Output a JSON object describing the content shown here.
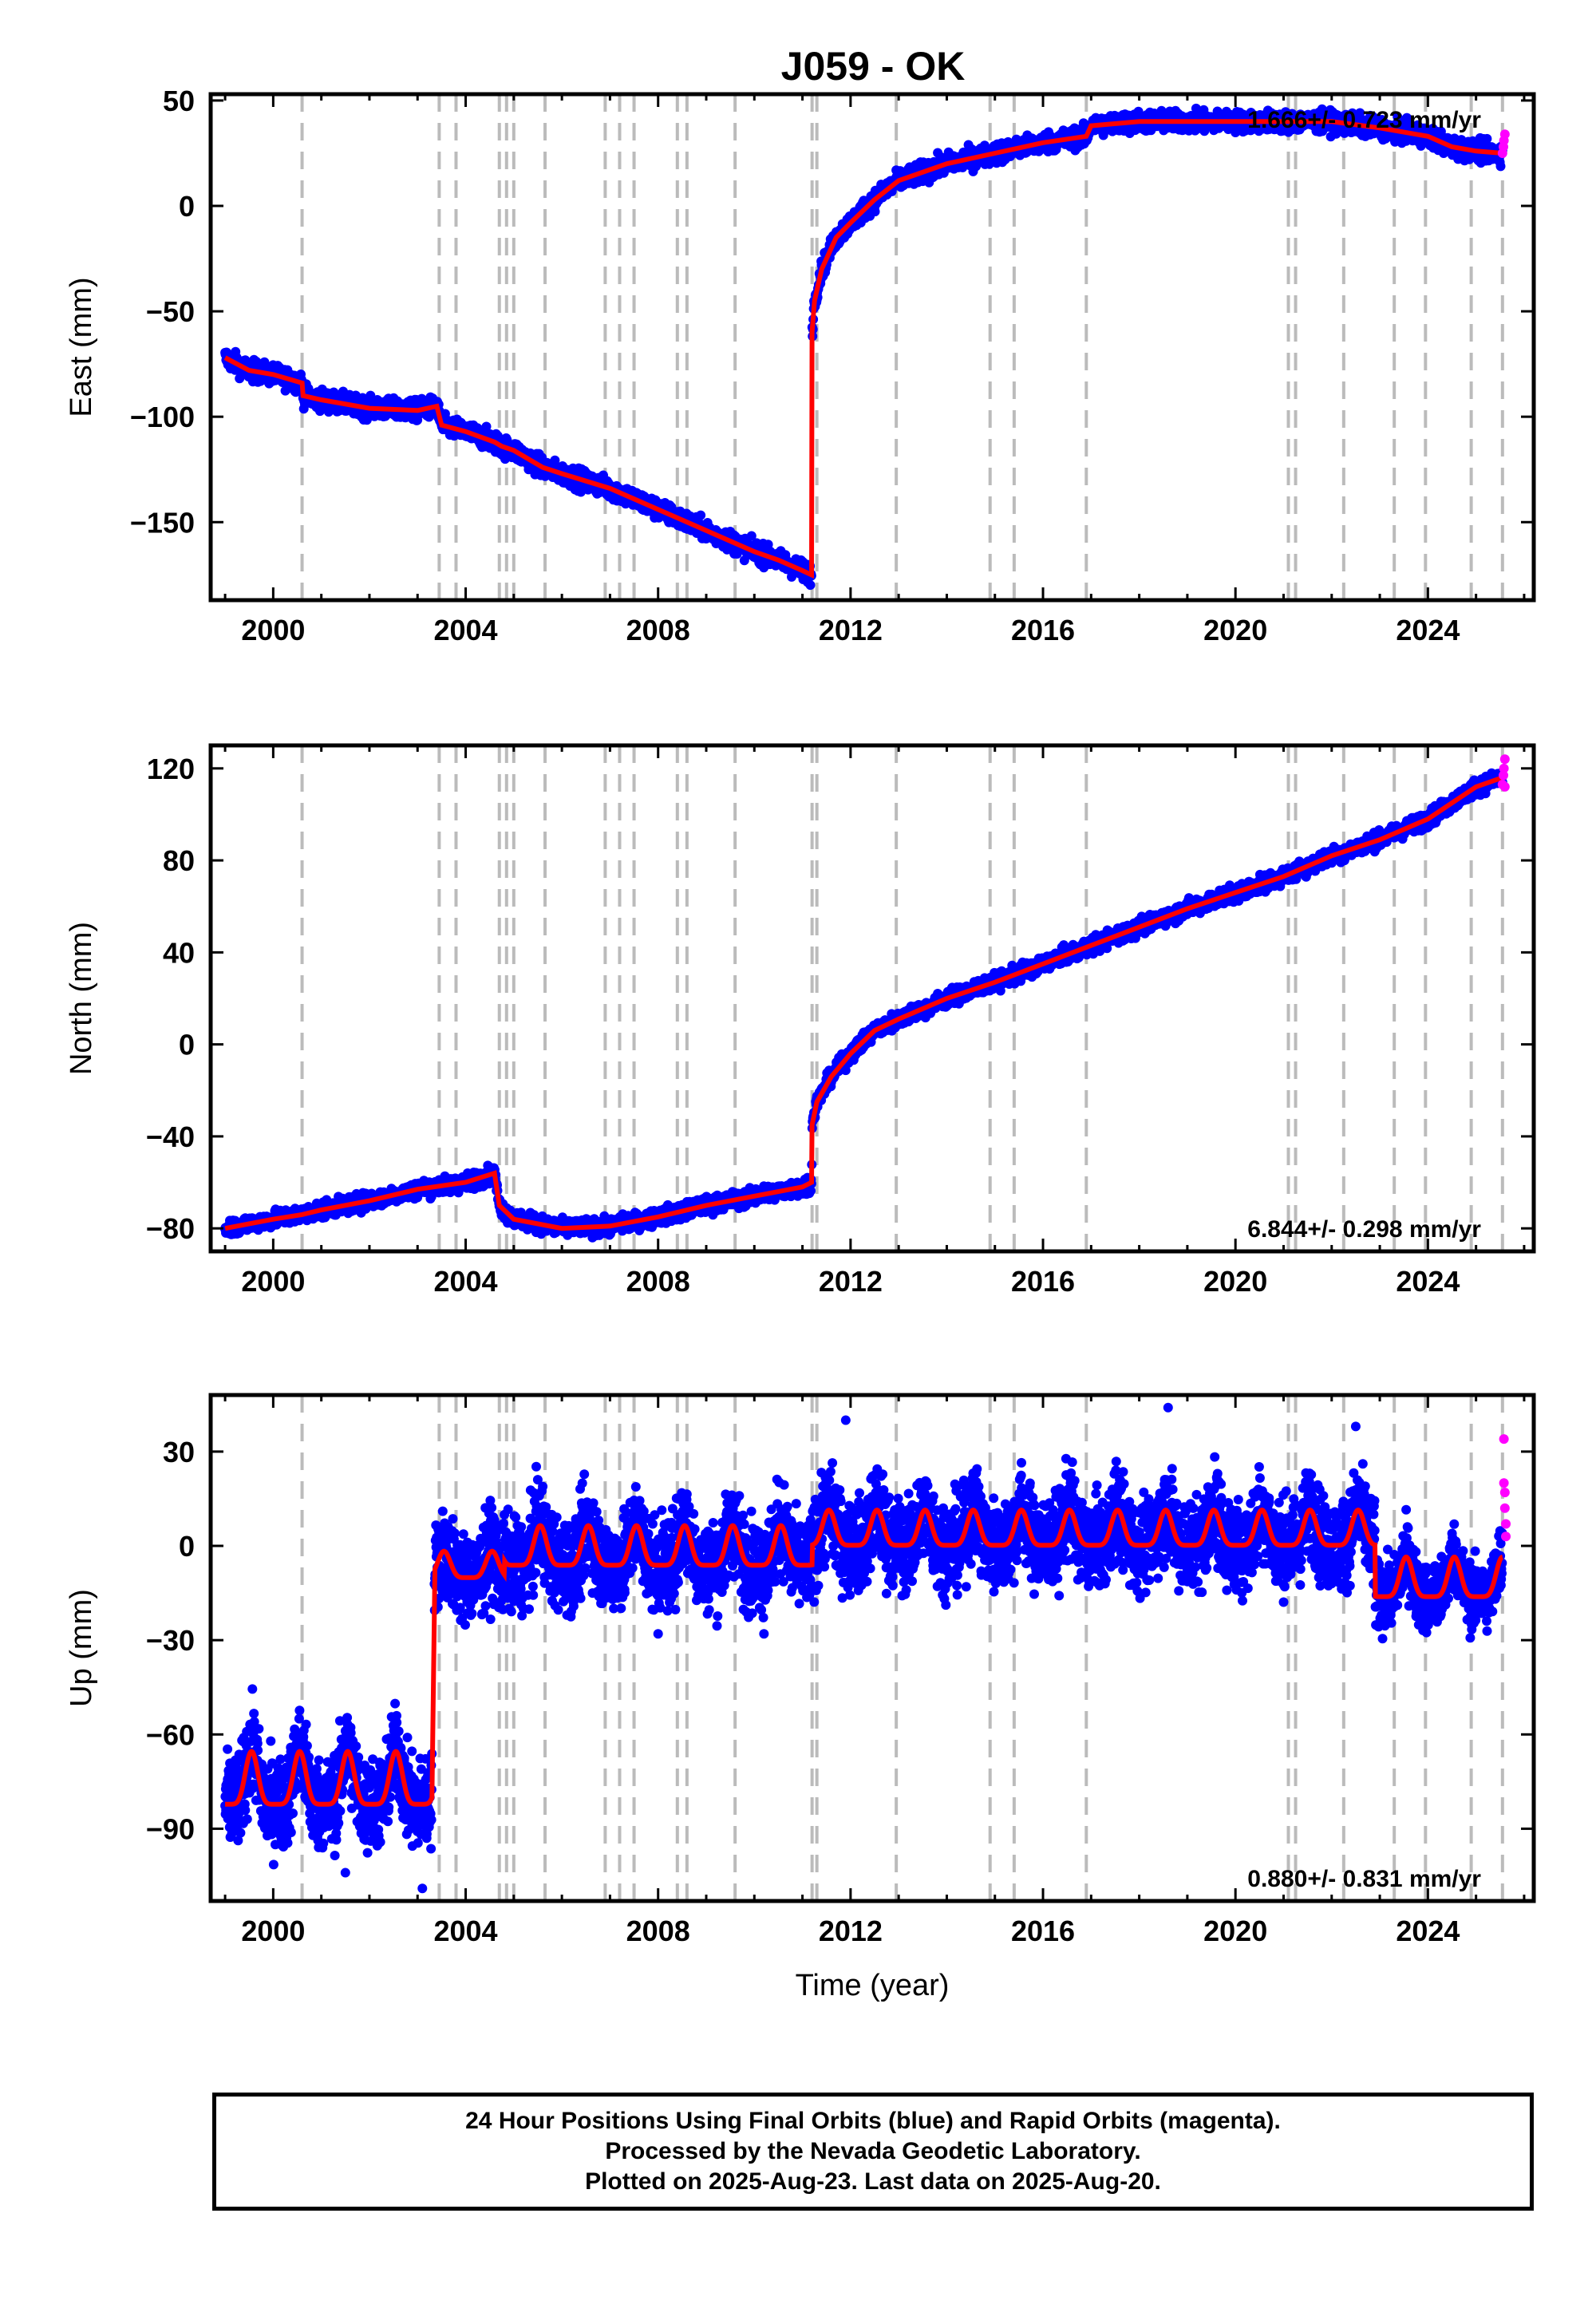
{
  "title": "J059 - OK",
  "colors": {
    "final_orbits": "#0000ff",
    "rapid_orbits": "#ff00ff",
    "model": "#ff0000",
    "equipment_lines": "#bbbbbb"
  },
  "footer": {
    "line1": "24 Hour Positions Using Final Orbits (blue) and Rapid Orbits (magenta).",
    "line2": "Processed by the Nevada Geodetic Laboratory.",
    "line3": "Plotted on 2025-Aug-23. Last data on 2025-Aug-20."
  },
  "chart_data": [
    {
      "type": "scatter",
      "component": "east",
      "ylabel": "East (mm)",
      "xlabel": "",
      "xlim": [
        1998.7,
        2026.2
      ],
      "ylim": [
        -187,
        53
      ],
      "xticks": [
        2000,
        2004,
        2008,
        2012,
        2016,
        2020,
        2024
      ],
      "yticks": [
        50,
        0,
        -50,
        -100,
        -150
      ],
      "ytick_labels": [
        "50",
        "0",
        "−50",
        "−100",
        "−150"
      ],
      "rate_label": "1.666+/- 0.723 mm/yr",
      "rate_position": "top-right",
      "model_points": [
        [
          1999.0,
          -72
        ],
        [
          1999.5,
          -78
        ],
        [
          2000.0,
          -80
        ],
        [
          2000.6,
          -84
        ],
        [
          2000.62,
          -90
        ],
        [
          2001.0,
          -92
        ],
        [
          2002.0,
          -96
        ],
        [
          2003.0,
          -97
        ],
        [
          2003.4,
          -95
        ],
        [
          2003.5,
          -104
        ],
        [
          2004.0,
          -107
        ],
        [
          2004.6,
          -112
        ],
        [
          2004.75,
          -114
        ],
        [
          2005.0,
          -116
        ],
        [
          2005.6,
          -124
        ],
        [
          2006.0,
          -127
        ],
        [
          2007.0,
          -134
        ],
        [
          2008.0,
          -144
        ],
        [
          2009.0,
          -154
        ],
        [
          2010.0,
          -164
        ],
        [
          2010.5,
          -168
        ],
        [
          2011.0,
          -173
        ],
        [
          2011.19,
          -175
        ],
        [
          2011.2,
          -60
        ],
        [
          2011.25,
          -45
        ],
        [
          2011.4,
          -30
        ],
        [
          2011.7,
          -15
        ],
        [
          2012.0,
          -8
        ],
        [
          2012.5,
          3
        ],
        [
          2013.0,
          12
        ],
        [
          2014.0,
          20
        ],
        [
          2015.0,
          25
        ],
        [
          2016.0,
          30
        ],
        [
          2016.9,
          33
        ],
        [
          2017.0,
          38
        ],
        [
          2018.0,
          40
        ],
        [
          2019.0,
          40
        ],
        [
          2020.0,
          40
        ],
        [
          2021.0,
          40
        ],
        [
          2022.0,
          40
        ],
        [
          2023.0,
          37
        ],
        [
          2024.0,
          33
        ],
        [
          2024.5,
          28
        ],
        [
          2025.0,
          26
        ],
        [
          2025.55,
          25
        ]
      ],
      "scatter_band_mm": 4,
      "rapid_points": [
        [
          2025.55,
          25
        ],
        [
          2025.57,
          28
        ],
        [
          2025.58,
          31
        ],
        [
          2025.6,
          34
        ]
      ]
    },
    {
      "type": "scatter",
      "component": "north",
      "ylabel": "North (mm)",
      "xlabel": "",
      "xlim": [
        1998.7,
        2026.2
      ],
      "ylim": [
        -90,
        130
      ],
      "xticks": [
        2000,
        2004,
        2008,
        2012,
        2016,
        2020,
        2024
      ],
      "yticks": [
        120,
        80,
        40,
        0,
        -40,
        -80
      ],
      "ytick_labels": [
        "120",
        "80",
        "40",
        "0",
        "−40",
        "−80"
      ],
      "rate_label": "6.844+/- 0.298 mm/yr",
      "rate_position": "bottom-right",
      "model_points": [
        [
          1999.0,
          -80
        ],
        [
          1999.5,
          -78
        ],
        [
          2000.0,
          -76
        ],
        [
          2000.6,
          -74
        ],
        [
          2001.0,
          -72
        ],
        [
          2002.0,
          -68
        ],
        [
          2003.0,
          -63
        ],
        [
          2004.0,
          -60
        ],
        [
          2004.6,
          -56
        ],
        [
          2004.7,
          -70
        ],
        [
          2005.0,
          -76
        ],
        [
          2006.0,
          -80
        ],
        [
          2007.0,
          -79
        ],
        [
          2008.0,
          -75
        ],
        [
          2009.0,
          -70
        ],
        [
          2010.0,
          -66
        ],
        [
          2011.0,
          -62
        ],
        [
          2011.19,
          -60
        ],
        [
          2011.2,
          -35
        ],
        [
          2011.3,
          -25
        ],
        [
          2011.6,
          -14
        ],
        [
          2012.0,
          -4
        ],
        [
          2012.5,
          6
        ],
        [
          2013.0,
          11
        ],
        [
          2014.0,
          20
        ],
        [
          2015.0,
          27
        ],
        [
          2016.0,
          35
        ],
        [
          2017.0,
          43
        ],
        [
          2018.0,
          51
        ],
        [
          2019.0,
          59
        ],
        [
          2020.0,
          66
        ],
        [
          2021.0,
          73
        ],
        [
          2022.0,
          82
        ],
        [
          2023.0,
          89
        ],
        [
          2024.0,
          98
        ],
        [
          2025.0,
          112
        ],
        [
          2025.55,
          116
        ]
      ],
      "scatter_band_mm": 3,
      "rapid_points": [
        [
          2025.55,
          113
        ],
        [
          2025.57,
          117
        ],
        [
          2025.58,
          120
        ],
        [
          2025.6,
          124
        ],
        [
          2025.6,
          112
        ]
      ]
    },
    {
      "type": "scatter",
      "component": "up",
      "ylabel": "Up (mm)",
      "xlabel": "Time (year)",
      "xlim": [
        1998.7,
        2026.2
      ],
      "ylim": [
        -113,
        48
      ],
      "xticks": [
        2000,
        2004,
        2008,
        2012,
        2016,
        2020,
        2024
      ],
      "yticks": [
        30,
        0,
        -30,
        -60,
        -90
      ],
      "ytick_labels": [
        "30",
        "0",
        "−30",
        "−60",
        "−90"
      ],
      "rate_label": "0.880+/- 0.831 mm/yr",
      "rate_position": "bottom-right",
      "model_segments": [
        {
          "start": 1999.0,
          "end": 2003.3,
          "base": -78,
          "amp": 12
        },
        {
          "start": 2003.35,
          "end": 2004.8,
          "base": -8,
          "amp": 6
        },
        {
          "start": 2004.8,
          "end": 2011.2,
          "base": -3,
          "amp": 9
        },
        {
          "start": 2011.2,
          "end": 2022.9,
          "base": 3,
          "amp": 8
        },
        {
          "start": 2022.9,
          "end": 2025.55,
          "base": -13,
          "amp": 9
        }
      ],
      "scatter_band_mm": 12,
      "rapid_points": [
        [
          2025.58,
          34
        ],
        [
          2025.58,
          20
        ],
        [
          2025.6,
          17
        ],
        [
          2025.6,
          12
        ],
        [
          2025.62,
          7
        ],
        [
          2025.62,
          3
        ]
      ]
    }
  ],
  "equipment_change_years": [
    2000.6,
    2003.45,
    2003.8,
    2004.7,
    2004.85,
    2005.0,
    2005.65,
    2006.9,
    2007.2,
    2007.5,
    2008.4,
    2008.6,
    2009.6,
    2011.2,
    2011.3,
    2012.95,
    2014.9,
    2015.4,
    2016.9,
    2021.1,
    2021.25,
    2022.25,
    2023.3,
    2023.95,
    2024.9,
    2025.55
  ]
}
